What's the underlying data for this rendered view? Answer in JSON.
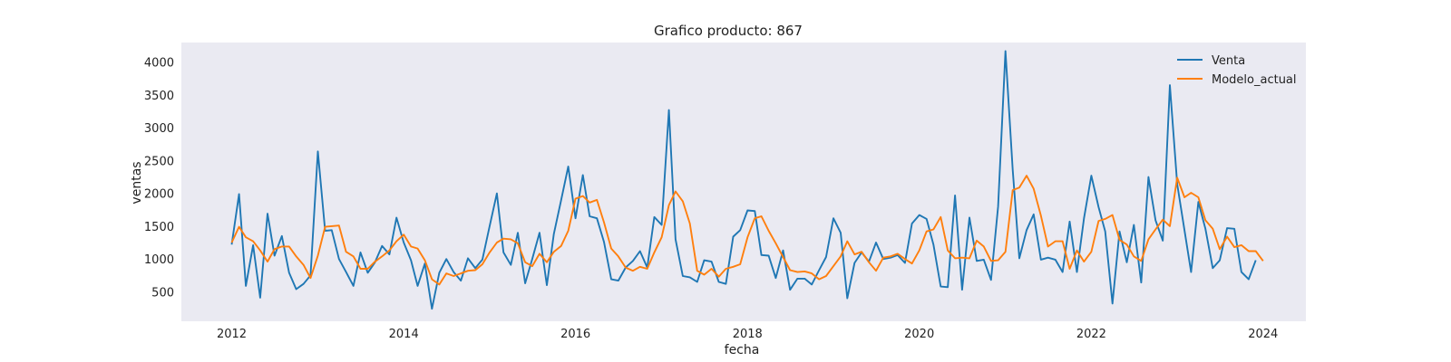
{
  "chart_data": {
    "type": "line",
    "title": "Grafico producto: 867",
    "xlabel": "fecha",
    "ylabel": "ventas",
    "x_axis": "date",
    "start_month": "2012-01",
    "xlim": [
      "2011-06",
      "2024-07"
    ],
    "ylim": [
      50,
      4300
    ],
    "xticks": [
      "2012",
      "2014",
      "2016",
      "2018",
      "2020",
      "2022",
      "2024"
    ],
    "xtick_dates": [
      "2012-01-01",
      "2014-01-01",
      "2016-01-01",
      "2018-01-01",
      "2020-01-01",
      "2022-01-01",
      "2024-01-01"
    ],
    "yticks": [
      500,
      1000,
      1500,
      2000,
      2500,
      3000,
      3500,
      4000
    ],
    "grid": false,
    "background": "#eaeaf2",
    "legend_position": "top-right",
    "series": [
      {
        "name": "Venta",
        "color": "#1f77b4",
        "values": [
          1220,
          1990,
          590,
          1210,
          410,
          1690,
          1050,
          1350,
          790,
          540,
          620,
          750,
          2640,
          1430,
          1440,
          1000,
          800,
          590,
          1100,
          790,
          950,
          1200,
          1070,
          1630,
          1250,
          980,
          590,
          930,
          240,
          790,
          1000,
          800,
          670,
          1010,
          860,
          990,
          1500,
          2000,
          1100,
          910,
          1400,
          630,
          1000,
          1400,
          600,
          1380,
          1900,
          2410,
          1620,
          2280,
          1650,
          1620,
          1260,
          690,
          670,
          870,
          970,
          1120,
          870,
          1640,
          1520,
          3270,
          1300,
          740,
          720,
          650,
          980,
          960,
          650,
          620,
          1340,
          1440,
          1740,
          1730,
          1060,
          1050,
          710,
          1130,
          530,
          700,
          700,
          610,
          830,
          1030,
          1620,
          1400,
          400,
          940,
          1100,
          960,
          1250,
          1000,
          1020,
          1060,
          940,
          1540,
          1670,
          1610,
          1220,
          580,
          570,
          1970,
          530,
          1630,
          970,
          990,
          680,
          1800,
          4170,
          2360,
          1010,
          1440,
          1680,
          990,
          1020,
          990,
          800,
          1570,
          800,
          1620,
          2270,
          1790,
          1420,
          320,
          1420,
          950,
          1520,
          640,
          2250,
          1590,
          1280,
          3650,
          2140,
          1440,
          800,
          1870,
          1460,
          860,
          980,
          1470,
          1460,
          800,
          690,
          980
        ]
      },
      {
        "name": "Modelo_actual",
        "color": "#ff7f0e",
        "values": [
          1250,
          1490,
          1330,
          1270,
          1130,
          960,
          1150,
          1190,
          1190,
          1040,
          910,
          710,
          1050,
          1490,
          1500,
          1510,
          1110,
          1040,
          850,
          850,
          960,
          1040,
          1130,
          1270,
          1370,
          1190,
          1160,
          980,
          690,
          610,
          780,
          740,
          780,
          820,
          830,
          920,
          1100,
          1250,
          1310,
          1300,
          1240,
          950,
          890,
          1080,
          950,
          1110,
          1200,
          1430,
          1920,
          1960,
          1860,
          1900,
          1560,
          1160,
          1040,
          870,
          820,
          880,
          850,
          1100,
          1330,
          1820,
          2030,
          1880,
          1540,
          820,
          760,
          850,
          730,
          850,
          880,
          920,
          1330,
          1620,
          1650,
          1430,
          1240,
          1030,
          830,
          800,
          810,
          780,
          690,
          740,
          890,
          1040,
          1270,
          1070,
          1110,
          950,
          820,
          1020,
          1040,
          1080,
          1000,
          930,
          1130,
          1420,
          1450,
          1640,
          1130,
          1010,
          1020,
          1010,
          1280,
          1190,
          970,
          980,
          1110,
          2050,
          2090,
          2270,
          2070,
          1660,
          1190,
          1270,
          1270,
          850,
          1130,
          960,
          1110,
          1580,
          1610,
          1670,
          1290,
          1220,
          1040,
          970,
          1300,
          1450,
          1600,
          1500,
          2240,
          1940,
          2010,
          1940,
          1590,
          1460,
          1150,
          1340,
          1180,
          1210,
          1120,
          1120,
          970
        ]
      }
    ]
  }
}
